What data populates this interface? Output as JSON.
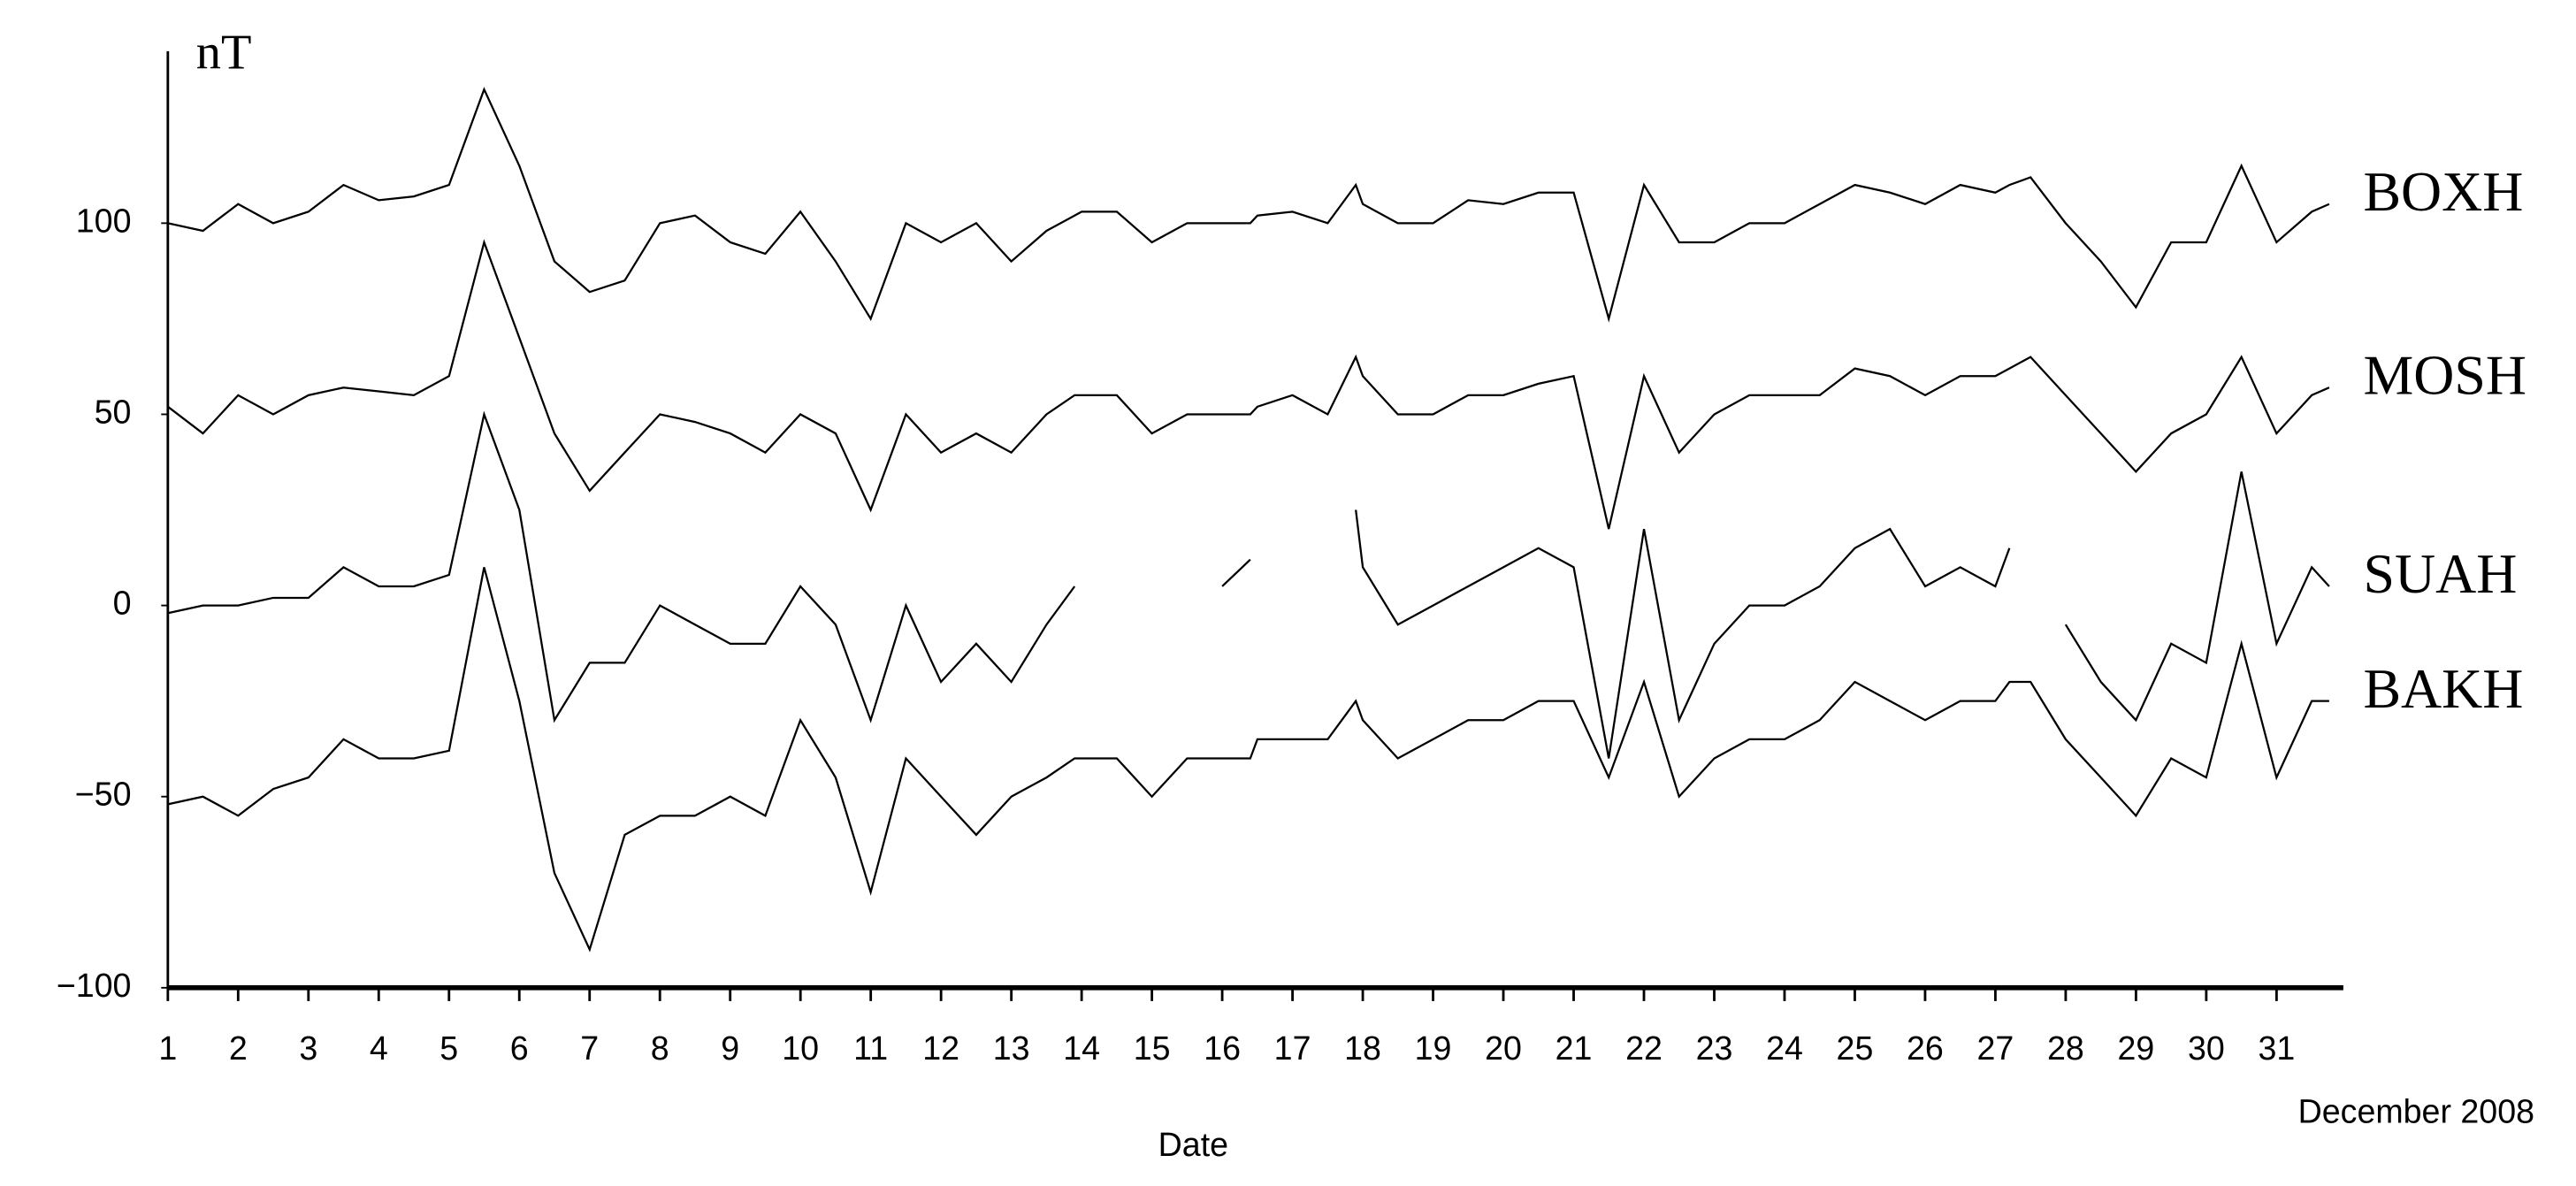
{
  "chart_data": {
    "type": "line",
    "y_label": "nT",
    "x_label": "Date",
    "annotation": "December 2008",
    "x": [
      1,
      1.5,
      2,
      2.5,
      3,
      3.5,
      4,
      4.5,
      5,
      5.5,
      6,
      6.5,
      7,
      7.5,
      8,
      8.5,
      9,
      9.5,
      10,
      10.5,
      11,
      11.5,
      12,
      12.5,
      13,
      13.5,
      13.9,
      14,
      14.5,
      15,
      15.5,
      16,
      16.4,
      16.5,
      17,
      17.5,
      17.9,
      18,
      18.5,
      19,
      19.5,
      20,
      20.5,
      21,
      21.5,
      22,
      22.5,
      23,
      23.5,
      24,
      24.5,
      25,
      25.5,
      26,
      26.5,
      27,
      27.2,
      27.5,
      28,
      28.5,
      29,
      29.5,
      30,
      30.5,
      31,
      31.5,
      31.75
    ],
    "series": [
      {
        "name": "BOXH",
        "color": "#000000",
        "values": [
          100,
          98,
          105,
          100,
          103,
          110,
          106,
          107,
          110,
          135,
          115,
          90,
          82,
          85,
          100,
          102,
          95,
          92,
          103,
          90,
          75,
          100,
          95,
          100,
          90,
          98,
          102,
          103,
          103,
          95,
          100,
          100,
          100,
          102,
          103,
          100,
          110,
          105,
          100,
          100,
          106,
          105,
          108,
          108,
          75,
          110,
          95,
          95,
          100,
          100,
          105,
          110,
          108,
          105,
          110,
          108,
          110,
          112,
          100,
          90,
          78,
          95,
          95,
          115,
          95,
          103,
          105
        ]
      },
      {
        "name": "MOSH",
        "color": "#000000",
        "values": [
          52,
          45,
          55,
          50,
          55,
          57,
          56,
          55,
          60,
          95,
          70,
          45,
          30,
          40,
          50,
          48,
          45,
          40,
          50,
          45,
          25,
          50,
          40,
          45,
          40,
          50,
          55,
          55,
          55,
          45,
          50,
          50,
          50,
          52,
          55,
          50,
          65,
          60,
          50,
          50,
          55,
          55,
          58,
          60,
          20,
          60,
          40,
          50,
          55,
          55,
          55,
          62,
          60,
          55,
          60,
          60,
          62,
          65,
          55,
          45,
          35,
          45,
          50,
          65,
          45,
          55,
          57
        ]
      },
      {
        "name": "SUAH",
        "color": "#000000",
        "values": [
          -2,
          0,
          0,
          2,
          2,
          10,
          5,
          5,
          8,
          50,
          25,
          -30,
          -15,
          -15,
          0,
          -5,
          -10,
          -10,
          5,
          -5,
          -30,
          0,
          -20,
          -10,
          -20,
          -5,
          5,
          null,
          null,
          null,
          null,
          5,
          12,
          null,
          null,
          null,
          25,
          10,
          -5,
          0,
          5,
          10,
          15,
          10,
          -40,
          20,
          -30,
          -10,
          0,
          0,
          5,
          15,
          20,
          5,
          10,
          5,
          15,
          null,
          -5,
          -20,
          -30,
          -10,
          -15,
          35,
          -10,
          10,
          5
        ]
      },
      {
        "name": "BAKH",
        "color": "#000000",
        "values": [
          -52,
          -50,
          -55,
          -48,
          -45,
          -35,
          -40,
          -40,
          -38,
          10,
          -25,
          -70,
          -90,
          -60,
          -55,
          -55,
          -50,
          -55,
          -30,
          -45,
          -75,
          -40,
          -50,
          -60,
          -50,
          -45,
          -40,
          -40,
          -40,
          -50,
          -40,
          -40,
          -40,
          -35,
          -35,
          -35,
          -25,
          -30,
          -40,
          -35,
          -30,
          -30,
          -25,
          -25,
          -45,
          -20,
          -50,
          -40,
          -35,
          -35,
          -30,
          -20,
          -25,
          -30,
          -25,
          -25,
          -20,
          -20,
          -35,
          -45,
          -55,
          -40,
          -45,
          -10,
          -45,
          -25,
          -25
        ]
      }
    ],
    "xlim": [
      1,
      31.95
    ],
    "xticks": [
      1,
      2,
      3,
      4,
      5,
      6,
      7,
      8,
      9,
      10,
      11,
      12,
      13,
      14,
      15,
      16,
      17,
      18,
      19,
      20,
      21,
      22,
      23,
      24,
      25,
      26,
      27,
      28,
      29,
      30,
      31
    ],
    "ylim": [
      -100,
      145
    ],
    "yticks": [
      {
        "value": -100,
        "label": "−100"
      },
      {
        "value": -50,
        "label": "−50"
      },
      0,
      50,
      100
    ]
  }
}
